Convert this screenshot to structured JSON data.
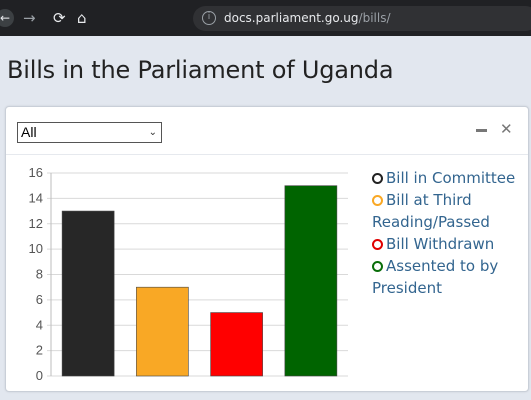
{
  "browser": {
    "url_host": "docs.parliament.go.ug",
    "url_path": "/bills/",
    "info_icon": "i"
  },
  "page": {
    "title": "Bills in the Parliament of Uganda"
  },
  "panel": {
    "filter": {
      "selected": "All"
    },
    "icons": [
      "minimize-icon",
      "close-icon"
    ]
  },
  "colors": {
    "committee": "#272727",
    "third_reading": "#f9a825",
    "withdrawn": "#ff0000",
    "assented": "#006400"
  },
  "legend": [
    {
      "label": "Bill in Committee",
      "color": "#222222"
    },
    {
      "label": "Bill at Third Reading/Passed",
      "color": "#f9a825"
    },
    {
      "label": "Bill Withdrawn",
      "color": "#e00000"
    },
    {
      "label": "Assented to by President",
      "color": "#0a6e0a"
    }
  ],
  "chart_data": {
    "type": "bar",
    "categories": [
      "Bill in Committee",
      "Bill at Third Reading/Passed",
      "Bill Withdrawn",
      "Assented to by President"
    ],
    "values": [
      13,
      7,
      5,
      15
    ],
    "colors": [
      "#272727",
      "#f9a825",
      "#ff0000",
      "#006400"
    ],
    "yticks": [
      0,
      2,
      4,
      6,
      8,
      10,
      12,
      14,
      16
    ],
    "ylim": [
      0,
      16
    ],
    "grid": true,
    "legend_position": "right"
  }
}
